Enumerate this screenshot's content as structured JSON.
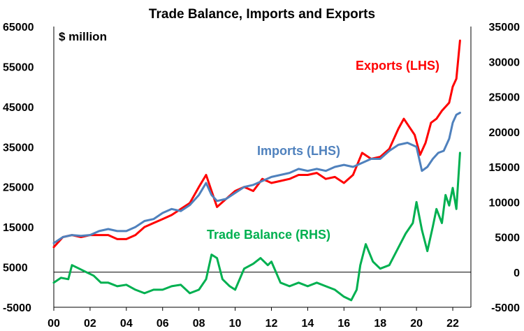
{
  "chart_data": {
    "type": "line",
    "title": "Trade Balance, Imports and Exports",
    "unit_label": "$ million",
    "x_ticks": [
      "00",
      "02",
      "04",
      "06",
      "08",
      "10",
      "12",
      "14",
      "16",
      "18",
      "20",
      "22"
    ],
    "left_ticks": [
      "65000",
      "55000",
      "45000",
      "35000",
      "25000",
      "15000",
      "5000",
      "-5000"
    ],
    "right_ticks": [
      "35000",
      "30000",
      "25000",
      "20000",
      "15000",
      "10000",
      "5000",
      "0",
      "-5000"
    ],
    "left_ylim": [
      -5000,
      65000
    ],
    "right_ylim": [
      -5000,
      35000
    ],
    "xlim": [
      2000,
      2023
    ],
    "zero_line_axis": "right",
    "colors": {
      "exports": "#ff0000",
      "imports": "#4f81bd",
      "balance": "#00b050",
      "axis": "#000000"
    },
    "series": [
      {
        "name": "Exports (LHS)",
        "axis": "left",
        "x": [
          2000.0,
          2000.5,
          2001.0,
          2001.5,
          2002.0,
          2002.5,
          2003.0,
          2003.5,
          2004.0,
          2004.5,
          2005.0,
          2005.5,
          2006.0,
          2006.5,
          2007.0,
          2007.5,
          2008.0,
          2008.4,
          2008.7,
          2009.0,
          2009.5,
          2010.0,
          2010.5,
          2011.0,
          2011.5,
          2012.0,
          2012.5,
          2013.0,
          2013.5,
          2014.0,
          2014.5,
          2015.0,
          2015.5,
          2016.0,
          2016.5,
          2017.0,
          2017.5,
          2018.0,
          2018.5,
          2019.0,
          2019.3,
          2019.6,
          2019.9,
          2020.2,
          2020.5,
          2020.8,
          2021.1,
          2021.4,
          2021.8,
          2022.0,
          2022.2,
          2022.4
        ],
        "values": [
          10000,
          12500,
          13000,
          12500,
          13000,
          13000,
          13000,
          12000,
          12000,
          13000,
          15000,
          16000,
          17000,
          18000,
          19500,
          21000,
          25000,
          28000,
          24000,
          20000,
          22000,
          24000,
          25000,
          24000,
          27000,
          26000,
          26500,
          27000,
          28000,
          28000,
          28500,
          27000,
          27500,
          26000,
          28000,
          33500,
          32000,
          32500,
          34500,
          39500,
          42000,
          40000,
          38000,
          33000,
          36000,
          41000,
          42000,
          44000,
          46000,
          50000,
          52000,
          61500
        ]
      },
      {
        "name": "Imports (LHS)",
        "axis": "left",
        "x": [
          2000.0,
          2000.5,
          2001.0,
          2001.5,
          2002.0,
          2002.5,
          2003.0,
          2003.5,
          2004.0,
          2004.5,
          2005.0,
          2005.5,
          2006.0,
          2006.5,
          2007.0,
          2007.5,
          2008.0,
          2008.4,
          2008.7,
          2009.0,
          2009.5,
          2010.0,
          2010.5,
          2011.0,
          2011.5,
          2012.0,
          2012.5,
          2013.0,
          2013.5,
          2014.0,
          2014.5,
          2015.0,
          2015.5,
          2016.0,
          2016.5,
          2017.0,
          2017.5,
          2018.0,
          2018.5,
          2019.0,
          2019.5,
          2020.0,
          2020.3,
          2020.6,
          2020.9,
          2021.2,
          2021.5,
          2021.8,
          2022.0,
          2022.2,
          2022.4
        ],
        "values": [
          11000,
          12500,
          13000,
          12800,
          13000,
          14000,
          14500,
          14000,
          14000,
          15000,
          16500,
          17000,
          18500,
          19500,
          19000,
          20500,
          23000,
          26000,
          23000,
          21500,
          22000,
          23500,
          25000,
          25500,
          26500,
          27500,
          28000,
          28500,
          29500,
          29000,
          29500,
          29000,
          30000,
          30500,
          30000,
          31000,
          32000,
          32000,
          34000,
          35500,
          36000,
          35000,
          29000,
          30000,
          32000,
          33500,
          34000,
          37000,
          41000,
          43000,
          43500
        ]
      },
      {
        "name": "Trade Balance (RHS)",
        "axis": "right",
        "x": [
          2000.0,
          2000.4,
          2000.8,
          2001.0,
          2001.4,
          2001.8,
          2002.2,
          2002.6,
          2003.0,
          2003.5,
          2004.0,
          2004.5,
          2005.0,
          2005.5,
          2006.0,
          2006.5,
          2007.0,
          2007.5,
          2008.0,
          2008.4,
          2008.7,
          2009.0,
          2009.3,
          2009.7,
          2010.0,
          2010.5,
          2011.0,
          2011.4,
          2011.8,
          2012.0,
          2012.5,
          2013.0,
          2013.5,
          2014.0,
          2014.5,
          2015.0,
          2015.5,
          2016.0,
          2016.4,
          2016.7,
          2016.9,
          2017.2,
          2017.6,
          2018.0,
          2018.5,
          2019.0,
          2019.4,
          2019.8,
          2020.0,
          2020.3,
          2020.6,
          2020.9,
          2021.1,
          2021.4,
          2021.6,
          2021.8,
          2022.0,
          2022.2,
          2022.4
        ],
        "values": [
          -1500,
          -800,
          -1000,
          1000,
          500,
          0,
          -500,
          -1500,
          -1500,
          -2000,
          -1800,
          -2500,
          -3000,
          -2500,
          -2500,
          -2000,
          -1800,
          -3000,
          -2500,
          -1000,
          2500,
          2000,
          -1000,
          -2000,
          -2500,
          500,
          1200,
          2000,
          1000,
          1500,
          -1500,
          -2000,
          -1500,
          -2000,
          -1500,
          -2000,
          -2500,
          -3500,
          -4000,
          -2500,
          1000,
          4000,
          1500,
          500,
          1000,
          3500,
          5500,
          7000,
          10000,
          6000,
          3000,
          6500,
          9000,
          7000,
          11000,
          9500,
          12000,
          9000,
          17000
        ]
      }
    ]
  }
}
